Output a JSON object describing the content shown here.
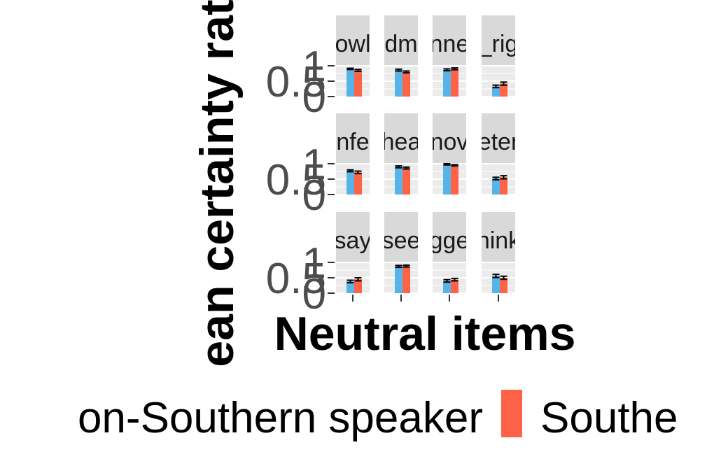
{
  "chart_data": {
    "type": "bar",
    "ylabel": "ean certainty rat",
    "xlabel": "Neutral items",
    "ylim": [
      0,
      1
    ],
    "y_ticks": [
      "0",
      "0.5",
      "1"
    ],
    "x_tick_labels": [
      "",
      "",
      "",
      ""
    ],
    "panels": [
      {
        "label": "owl",
        "values": [
          0.9,
          0.85
        ],
        "err": [
          0.02,
          0.03
        ]
      },
      {
        "label": "dm",
        "values": [
          0.86,
          0.8
        ],
        "err": [
          0.03,
          0.03
        ]
      },
      {
        "label": "nne",
        "values": [
          0.87,
          0.9
        ],
        "err": [
          0.03,
          0.03
        ]
      },
      {
        "label": "_rig",
        "values": [
          0.33,
          0.42
        ],
        "err": [
          0.04,
          0.05
        ]
      },
      {
        "label": "nfe",
        "values": [
          0.77,
          0.72
        ],
        "err": [
          0.03,
          0.04
        ]
      },
      {
        "label": "hea",
        "values": [
          0.9,
          0.86
        ],
        "err": [
          0.03,
          0.03
        ]
      },
      {
        "label": "nov",
        "values": [
          0.98,
          0.95
        ],
        "err": [
          0.02,
          0.02
        ]
      },
      {
        "label": "eter",
        "values": [
          0.52,
          0.56
        ],
        "err": [
          0.04,
          0.05
        ]
      },
      {
        "label": "say",
        "values": [
          0.38,
          0.45
        ],
        "err": [
          0.04,
          0.05
        ]
      },
      {
        "label": "see",
        "values": [
          0.87,
          0.88
        ],
        "err": [
          0.03,
          0.03
        ]
      },
      {
        "label": "gge",
        "values": [
          0.4,
          0.44
        ],
        "err": [
          0.04,
          0.04
        ]
      },
      {
        "label": "hink",
        "values": [
          0.56,
          0.5
        ],
        "err": [
          0.05,
          0.05
        ]
      }
    ],
    "series": [
      {
        "name": "on-Southern speaker",
        "color": "#56B4E9"
      },
      {
        "name": "Southe",
        "color": "#FF6347"
      }
    ],
    "legend_position": "bottom",
    "grid": true
  }
}
